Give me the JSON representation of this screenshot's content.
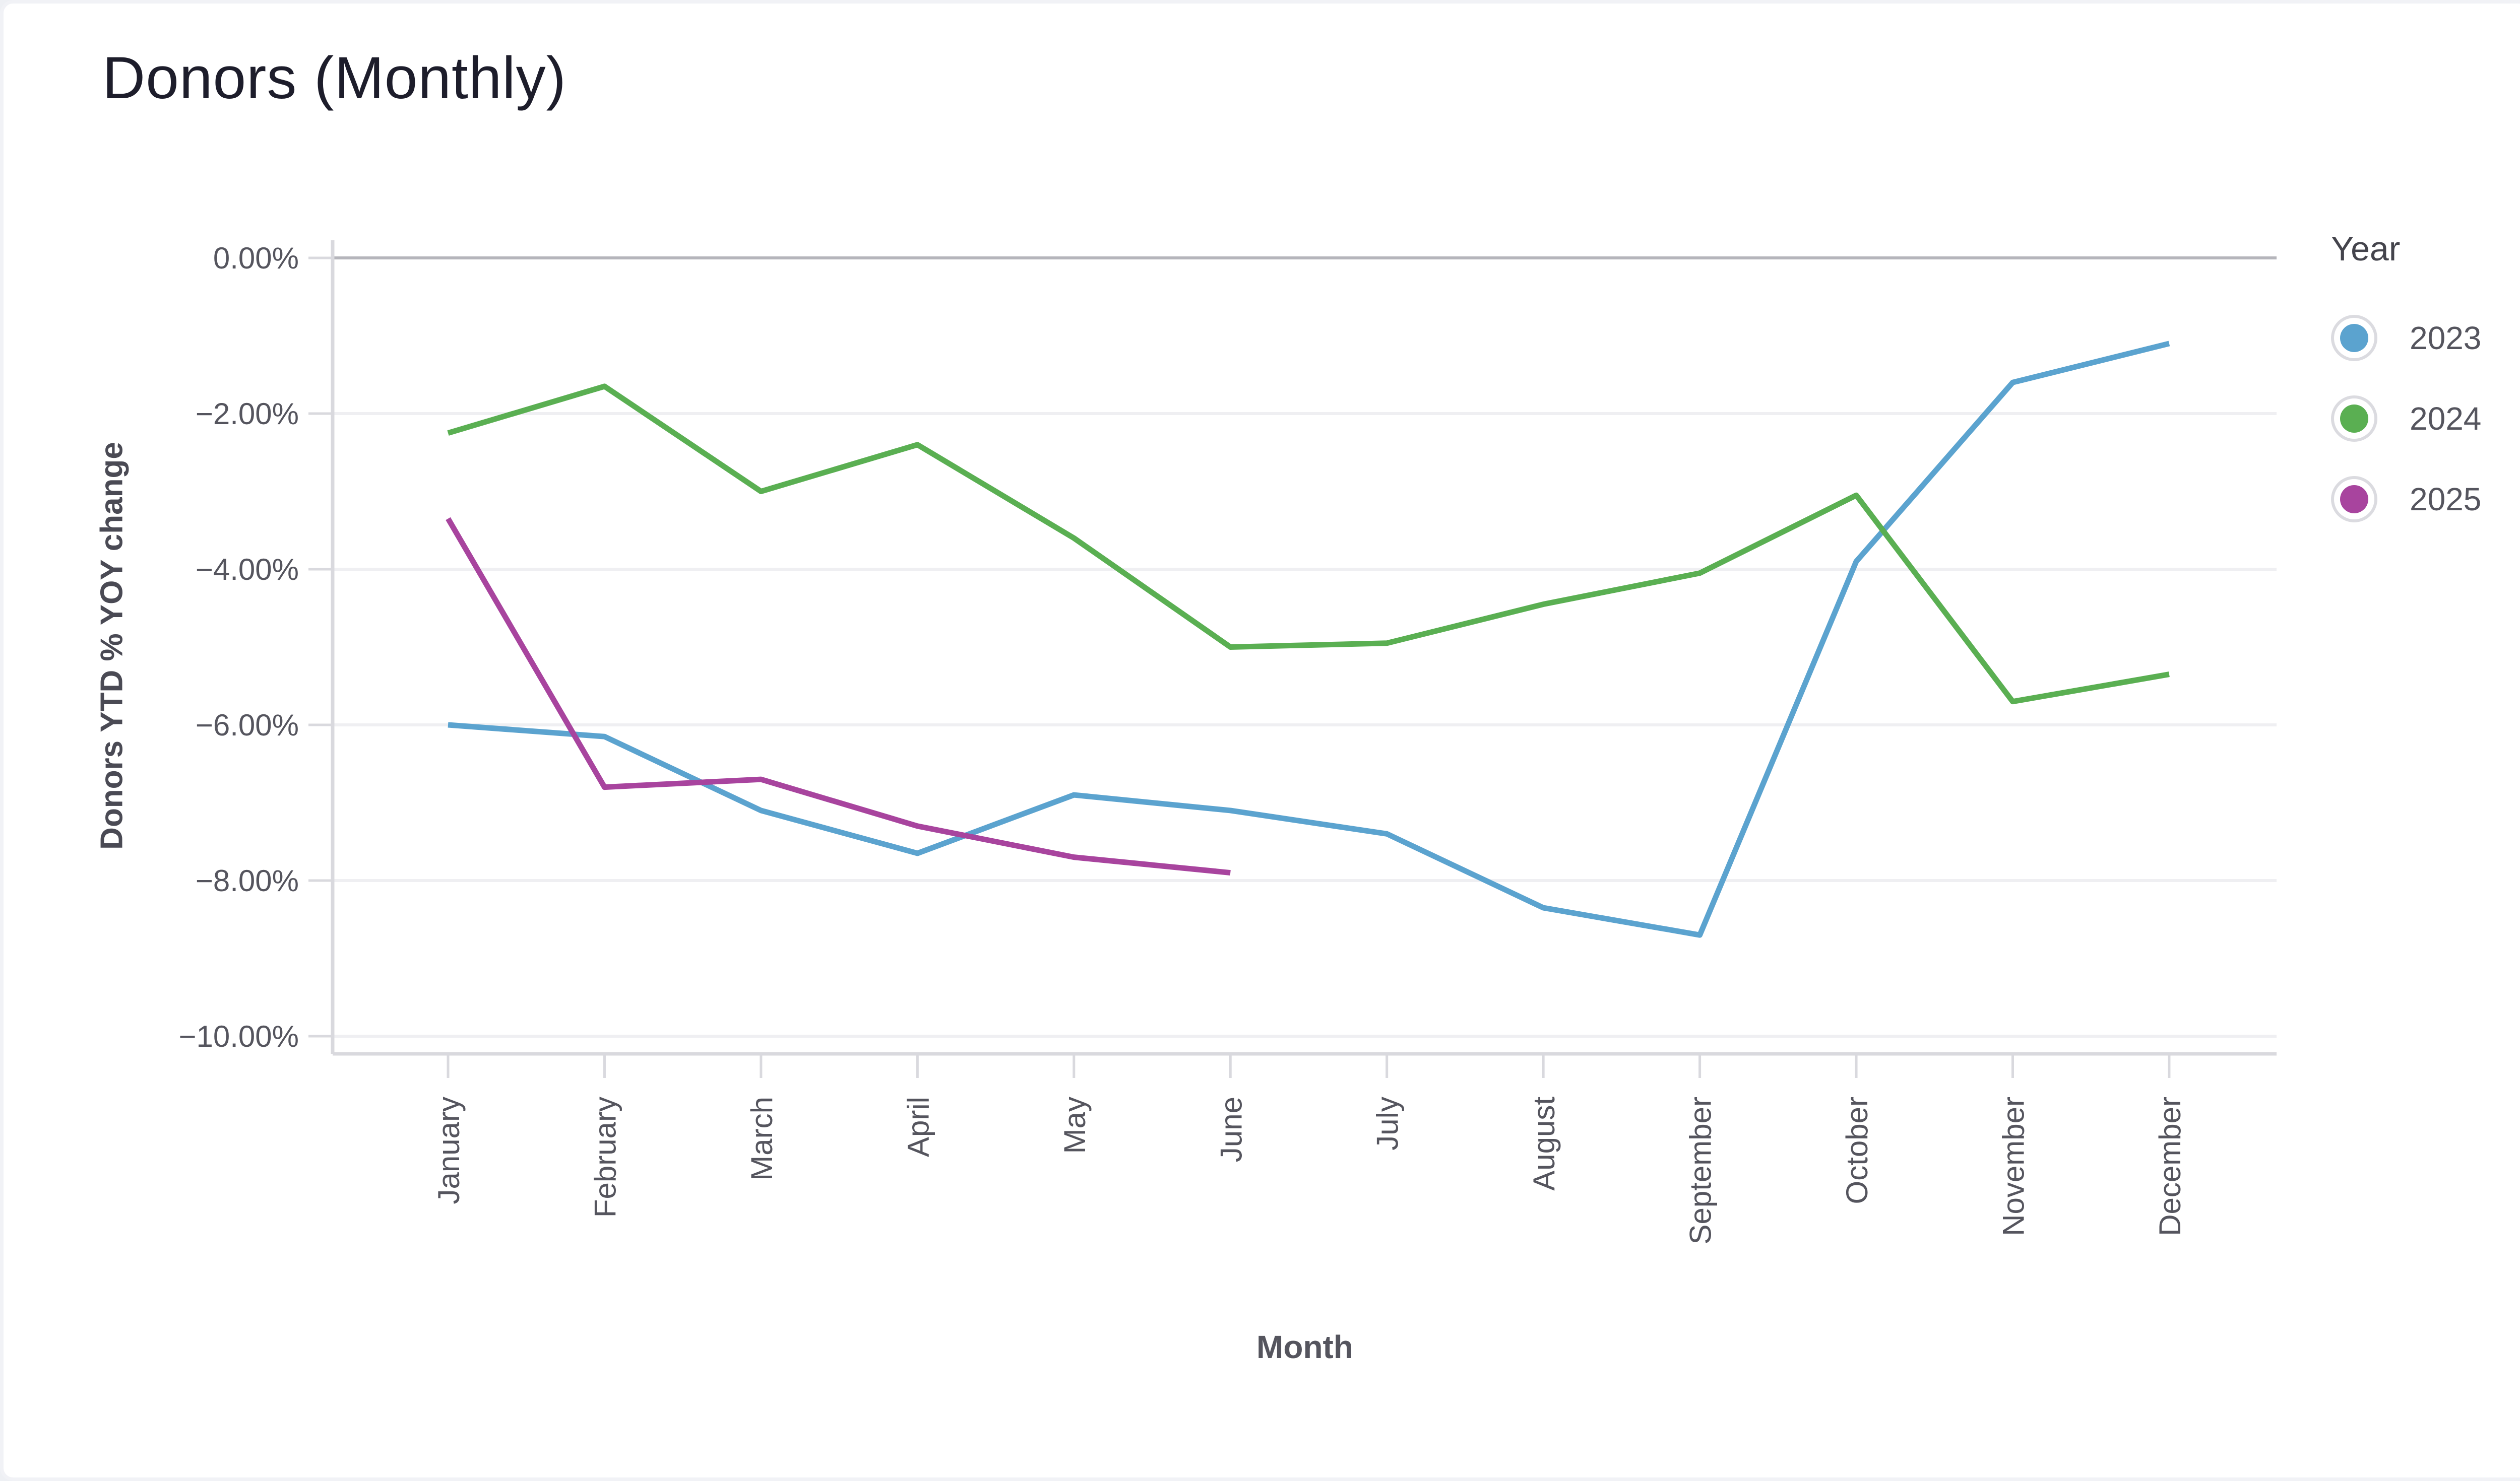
{
  "title": "Donors (Monthly)",
  "legend": {
    "title": "Year",
    "items": [
      {
        "label": "2023",
        "color": "#5BA3CF"
      },
      {
        "label": "2024",
        "color": "#5AAF52"
      },
      {
        "label": "2025",
        "color": "#A8449E"
      }
    ]
  },
  "chart_data": {
    "type": "line",
    "title": "Donors (Monthly)",
    "xlabel": "Month",
    "ylabel": "Donors YTD % YOY change",
    "ylim": [
      -10,
      0
    ],
    "ytick_step": 2,
    "ytick_labels": [
      "0.00%",
      "−2.00%",
      "−4.00%",
      "−6.00%",
      "−8.00%",
      "−10.00%"
    ],
    "grid": true,
    "legend_position": "right",
    "categories": [
      "January",
      "February",
      "March",
      "April",
      "May",
      "June",
      "July",
      "August",
      "September",
      "October",
      "November",
      "December"
    ],
    "series": [
      {
        "name": "2023",
        "color": "#5BA3CF",
        "values": [
          -6.0,
          -6.15,
          -7.1,
          -7.65,
          -6.9,
          -7.1,
          -7.4,
          -8.35,
          -8.7,
          -3.9,
          -1.6,
          -1.1
        ]
      },
      {
        "name": "2024",
        "color": "#5AAF52",
        "values": [
          -2.25,
          -1.65,
          -3.0,
          -2.4,
          -3.6,
          -5.0,
          -4.95,
          -4.45,
          -4.05,
          -3.05,
          -5.7,
          -5.35
        ]
      },
      {
        "name": "2025",
        "color": "#A8449E",
        "values": [
          -3.35,
          -6.8,
          -6.7,
          -7.3,
          -7.7,
          -7.9
        ]
      }
    ]
  },
  "colors": {
    "background": "#FFFFFF",
    "card_border": "#F1F2F6",
    "title_text": "#1D1D2B",
    "axis_title_text": "#4A4A54",
    "tick_label_text": "#55555E",
    "legend_title_text": "#44444C",
    "zero_line": "#B5B5BB",
    "gridline": "#EFEFF2",
    "axis_line": "#D9D9DE",
    "tick_mark": "#D9D9DE",
    "legend_ring": "#DBDBE0"
  }
}
